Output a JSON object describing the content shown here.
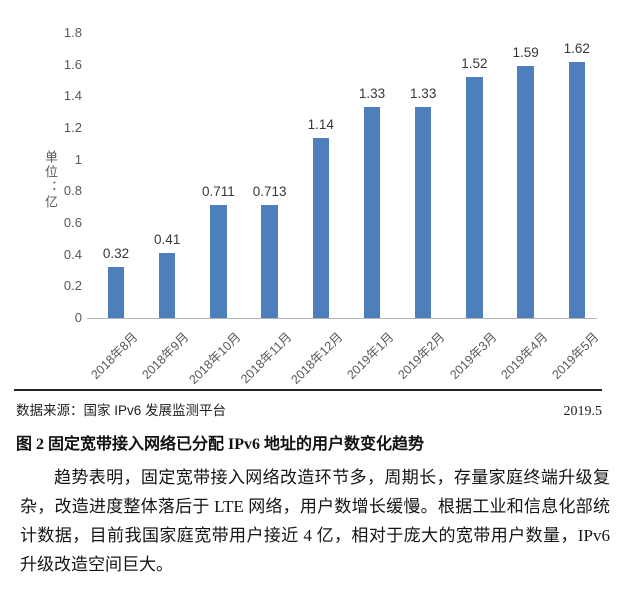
{
  "chart_data": {
    "type": "bar",
    "title": "",
    "ylabel": "单位：亿",
    "xlabel": "",
    "categories": [
      "2018年8月",
      "2018年9月",
      "2018年10月",
      "2018年11月",
      "2018年12月",
      "2019年1月",
      "2019年2月",
      "2019年3月",
      "2019年4月",
      "2019年5月"
    ],
    "values": [
      0.32,
      0.41,
      0.711,
      0.713,
      1.14,
      1.33,
      1.33,
      1.52,
      1.59,
      1.62
    ],
    "value_labels": [
      "0.32",
      "0.41",
      "0.711",
      "0.713",
      "1.14",
      "1.33",
      "1.33",
      "1.52",
      "1.59",
      "1.62"
    ],
    "y_ticks": [
      0,
      0.2,
      0.4,
      0.6,
      0.8,
      1,
      1.2,
      1.4,
      1.6,
      1.8
    ],
    "y_tick_labels": [
      "0",
      "0.2",
      "0.4",
      "0.6",
      "0.8",
      "1",
      "1.2",
      "1.4",
      "1.6",
      "1.8"
    ],
    "ylim": [
      0,
      1.8
    ],
    "grid": false,
    "legend": false,
    "bar_color": "#4e7fbd",
    "axis_line_color": "#b5b5b5",
    "tick_label_color": "#595959",
    "value_label_color": "#383838"
  },
  "source_row": {
    "source": "数据来源：国家 IPv6 发展监测平台",
    "date": "2019.5"
  },
  "figure_caption": "图 2 固定宽带接入网络已分配 IPv6 地址的用户数变化趋势",
  "body_paragraph": "趋势表明，固定宽带接入网络改造环节多，周期长，存量家庭终端升级复杂，改造进度整体落后于 LTE 网络，用户数增长缓慢。根据工业和信息化部统计数据，目前我国家庭宽带用户接近 4 亿，相对于庞大的宽带用户数量，IPv6 升级改造空间巨大。"
}
